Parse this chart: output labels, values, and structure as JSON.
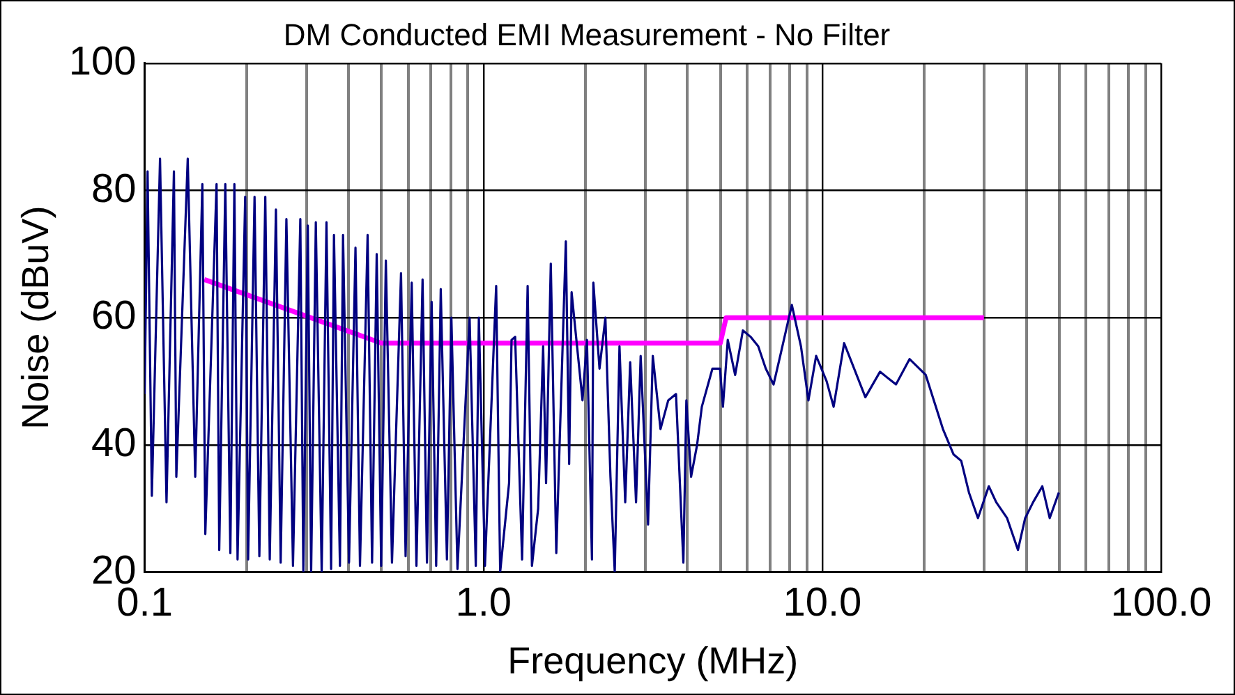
{
  "chart_data": {
    "type": "line",
    "title": "DM Conducted EMI Measurement - No Filter",
    "xlabel": "Frequency (MHz)",
    "ylabel": "Noise (dBuV)",
    "log": "x",
    "xlim": [
      0.1,
      100
    ],
    "xticks": [
      {
        "value": 0.1,
        "label": "0.1"
      },
      {
        "value": 0.2,
        "label": null
      },
      {
        "value": 0.3,
        "label": null
      },
      {
        "value": 0.4,
        "label": null
      },
      {
        "value": 0.5,
        "label": null
      },
      {
        "value": 0.6,
        "label": null
      },
      {
        "value": 0.7,
        "label": null
      },
      {
        "value": 0.8,
        "label": null
      },
      {
        "value": 0.9,
        "label": null
      },
      {
        "value": 1,
        "label": "1.0"
      },
      {
        "value": 2,
        "label": null
      },
      {
        "value": 3,
        "label": null
      },
      {
        "value": 4,
        "label": null
      },
      {
        "value": 5,
        "label": null
      },
      {
        "value": 6,
        "label": null
      },
      {
        "value": 7,
        "label": null
      },
      {
        "value": 8,
        "label": null
      },
      {
        "value": 9,
        "label": null
      },
      {
        "value": 10,
        "label": "10.0"
      },
      {
        "value": 20,
        "label": null
      },
      {
        "value": 30,
        "label": null
      },
      {
        "value": 40,
        "label": null
      },
      {
        "value": 50,
        "label": null
      },
      {
        "value": 60,
        "label": null
      },
      {
        "value": 70,
        "label": null
      },
      {
        "value": 80,
        "label": null
      },
      {
        "value": 90,
        "label": null
      },
      {
        "value": 100,
        "label": "100.0"
      }
    ],
    "ylim": [
      20,
      100
    ],
    "yticks": [
      20,
      40,
      60,
      80,
      100
    ],
    "grid": true,
    "legend": false,
    "marker": "none",
    "line_style": "solid",
    "series": [
      {
        "color": "#000080",
        "x": [
          0.1,
          0.102,
          0.105,
          0.111,
          0.116,
          0.122,
          0.124,
          0.134,
          0.141,
          0.148,
          0.151,
          0.163,
          0.166,
          0.173,
          0.179,
          0.184,
          0.188,
          0.198,
          0.202,
          0.211,
          0.218,
          0.227,
          0.234,
          0.244,
          0.252,
          0.262,
          0.274,
          0.288,
          0.294,
          0.303,
          0.31,
          0.32,
          0.333,
          0.344,
          0.355,
          0.362,
          0.377,
          0.385,
          0.401,
          0.419,
          0.432,
          0.455,
          0.469,
          0.484,
          0.499,
          0.515,
          0.537,
          0.571,
          0.589,
          0.614,
          0.634,
          0.661,
          0.681,
          0.703,
          0.725,
          0.748,
          0.78,
          0.804,
          0.838,
          0.91,
          0.949,
          0.969,
          1.01,
          1.09,
          1.12,
          1.19,
          1.21,
          1.24,
          1.3,
          1.35,
          1.39,
          1.45,
          1.5,
          1.53,
          1.58,
          1.64,
          1.75,
          1.79,
          1.82,
          1.96,
          2.02,
          2.09,
          2.11,
          2.2,
          2.29,
          2.37,
          2.44,
          2.52,
          2.62,
          2.71,
          2.82,
          2.91,
          3.06,
          3.16,
          3.33,
          3.51,
          3.7,
          3.89,
          3.97,
          4.1,
          4.27,
          4.41,
          4.74,
          4.99,
          5.09,
          5.26,
          5.53,
          5.83,
          6.14,
          6.47,
          6.81,
          7.18,
          7.55,
          8.13,
          8.65,
          9.1,
          9.59,
          10.3,
          10.8,
          11.6,
          13.4,
          14.8,
          16.5,
          18.1,
          20.2,
          22.7,
          24.4,
          25.7,
          27.1,
          28.8,
          31,
          32.6,
          35.1,
          37.8,
          39.7,
          41.9,
          44.6,
          46.9,
          49.9
        ],
        "values": [
          48,
          83,
          32,
          85,
          31,
          83,
          35,
          85,
          35,
          81,
          26,
          81,
          23.5,
          81,
          23,
          81,
          22,
          79,
          22,
          79,
          22.5,
          79,
          22,
          77,
          21.5,
          75.5,
          21,
          75.5,
          20,
          74.5,
          20,
          75,
          20,
          75,
          20.5,
          73,
          21,
          73,
          21.5,
          71,
          21,
          73,
          21.5,
          70,
          21,
          69,
          21.5,
          67,
          22.5,
          65.5,
          21,
          66,
          21.5,
          62.5,
          21,
          64.5,
          22,
          60,
          20.5,
          60,
          21,
          60,
          21,
          65,
          20,
          34,
          56.5,
          57,
          22,
          65,
          21,
          30,
          55.5,
          34,
          68.5,
          23,
          72,
          37,
          64,
          47,
          56.5,
          22,
          65.5,
          52,
          60,
          35,
          20,
          55.5,
          31,
          53,
          31,
          54,
          27.5,
          54,
          42.5,
          47,
          48,
          21.5,
          47,
          35,
          40,
          46,
          52,
          52,
          46,
          56.5,
          51,
          58,
          57,
          55.5,
          52,
          49.5,
          54.5,
          62,
          55.5,
          47,
          54,
          50,
          46,
          56,
          47.5,
          51.5,
          49.5,
          53.5,
          51,
          42.5,
          38.5,
          37.5,
          32.5,
          28.5,
          33.5,
          31,
          28.5,
          23.5,
          28.5,
          31,
          33.5,
          28.5,
          32.5
        ]
      },
      {
        "color": "#ff00ff",
        "x": [
          0.15,
          0.5,
          5,
          5.2,
          30
        ],
        "values": [
          66,
          56,
          56,
          60,
          60
        ]
      }
    ]
  }
}
